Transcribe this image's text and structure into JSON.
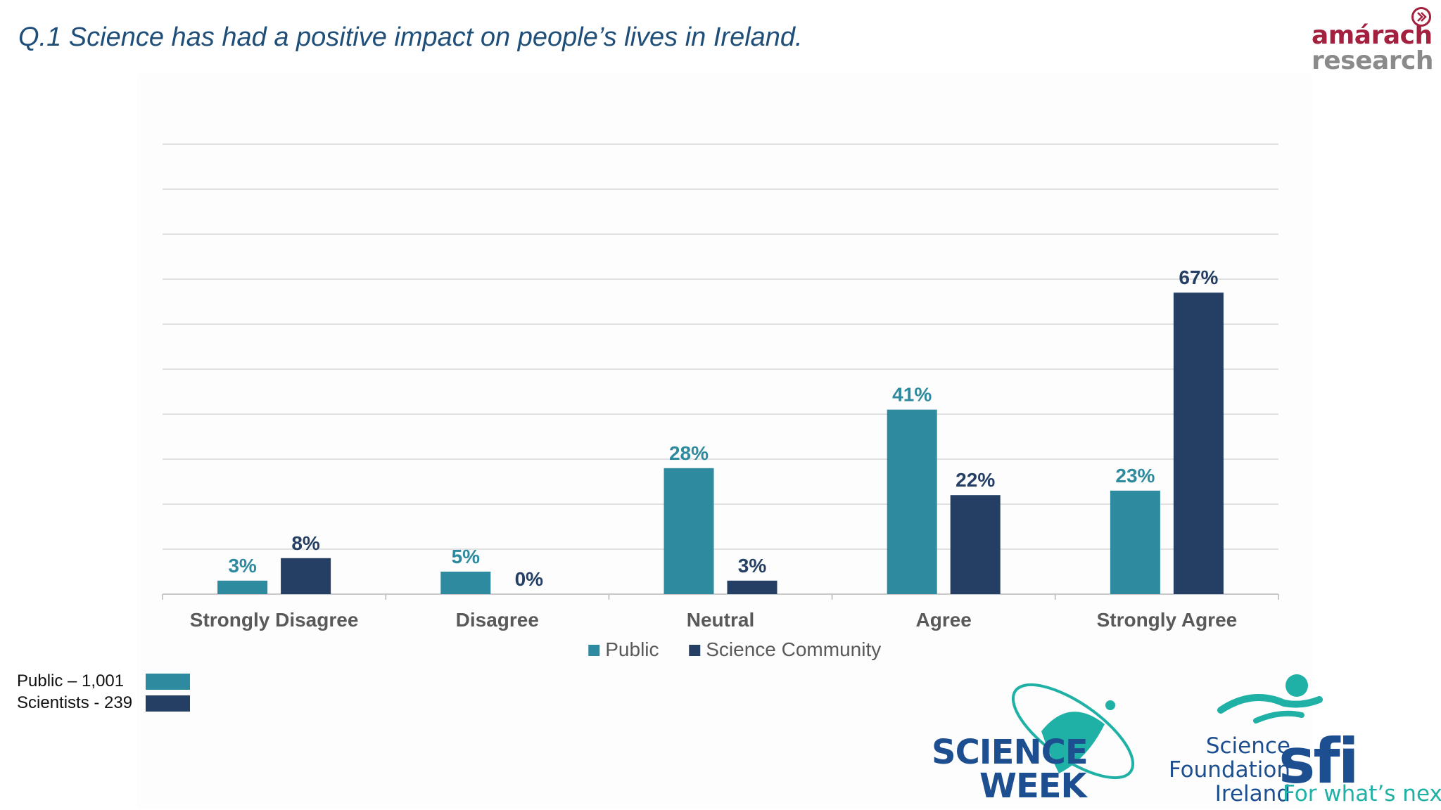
{
  "title": "Q.1 Science has had a positive impact on people’s lives in Ireland.",
  "logos": {
    "amarach_line1": "amárach",
    "amarach_line2": "research",
    "science_week_line1": "SCIENCE",
    "science_week_line2": "WEEK",
    "sfi_line1": "Science",
    "sfi_line2": "Foundation",
    "sfi_line3": "Ireland",
    "sfi_mark": "sfi",
    "sfi_tagline": "For what’s next"
  },
  "sample_key": [
    {
      "label": "Public – 1,001",
      "color": "#2e8a9e"
    },
    {
      "label": "Scientists - 239",
      "color": "#243e64"
    }
  ],
  "colors": {
    "public": "#2e8a9e",
    "science": "#243e64",
    "brand_red": "#a3203f",
    "brand_blue": "#1d4e8f",
    "brand_teal": "#1fb1a6"
  },
  "chart_data": {
    "type": "bar",
    "title": "",
    "xlabel": "",
    "ylabel": "",
    "categories": [
      "Strongly Disagree",
      "Disagree",
      "Neutral",
      "Agree",
      "Strongly Agree"
    ],
    "series": [
      {
        "name": "Public",
        "values": [
          3,
          5,
          28,
          41,
          23
        ],
        "labels": [
          "3%",
          "5%",
          "28%",
          "41%",
          "23%"
        ]
      },
      {
        "name": "Science Community",
        "values": [
          8,
          0,
          3,
          22,
          67
        ],
        "labels": [
          "8%",
          "0%",
          "3%",
          "22%",
          "67%"
        ]
      }
    ],
    "ylim": [
      0,
      100
    ],
    "y_axis_visible": false,
    "grid": true,
    "legend_position": "bottom"
  }
}
